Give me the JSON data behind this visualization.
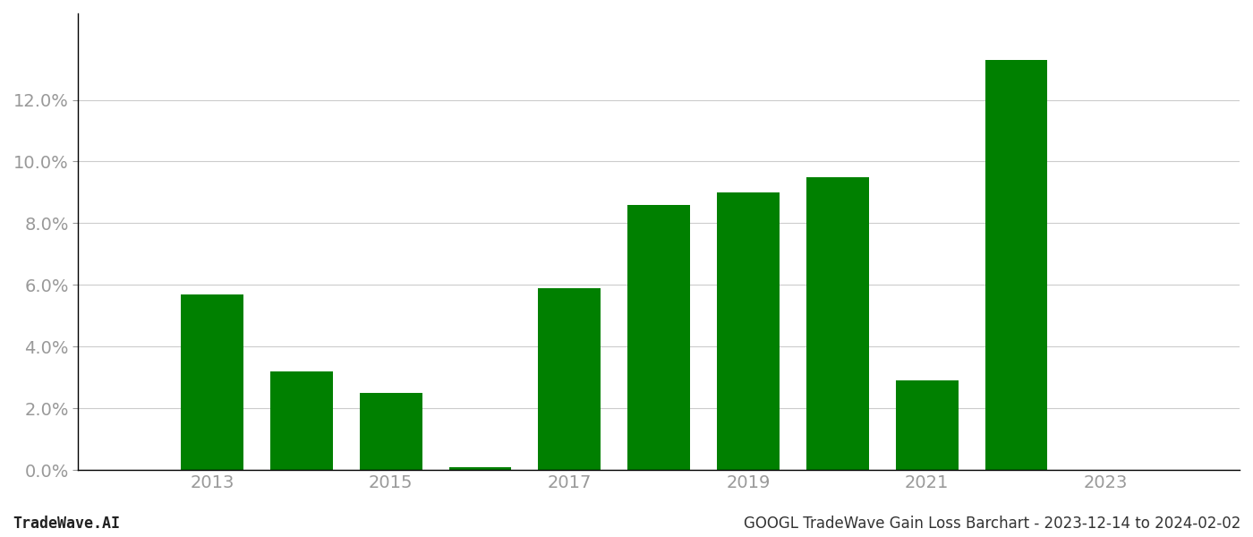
{
  "years": [
    2013,
    2014,
    2015,
    2016,
    2017,
    2018,
    2019,
    2020,
    2021,
    2022
  ],
  "values": [
    0.057,
    0.032,
    0.025,
    0.001,
    0.059,
    0.086,
    0.09,
    0.095,
    0.029,
    0.133
  ],
  "bar_color": "#008000",
  "background_color": "#ffffff",
  "grid_color": "#cccccc",
  "tick_label_color": "#999999",
  "spine_color": "#000000",
  "footer_left": "TradeWave.AI",
  "footer_right": "GOOGL TradeWave Gain Loss Barchart - 2023-12-14 to 2024-02-02",
  "bar_width": 0.7,
  "tick_fontsize": 14,
  "footer_fontsize": 12,
  "ylim": [
    0,
    0.148
  ],
  "yticks": [
    0.0,
    0.02,
    0.04,
    0.06,
    0.08,
    0.1,
    0.12
  ],
  "xticks": [
    2013,
    2015,
    2017,
    2019,
    2021,
    2023
  ],
  "xlim": [
    2011.5,
    2024.5
  ]
}
